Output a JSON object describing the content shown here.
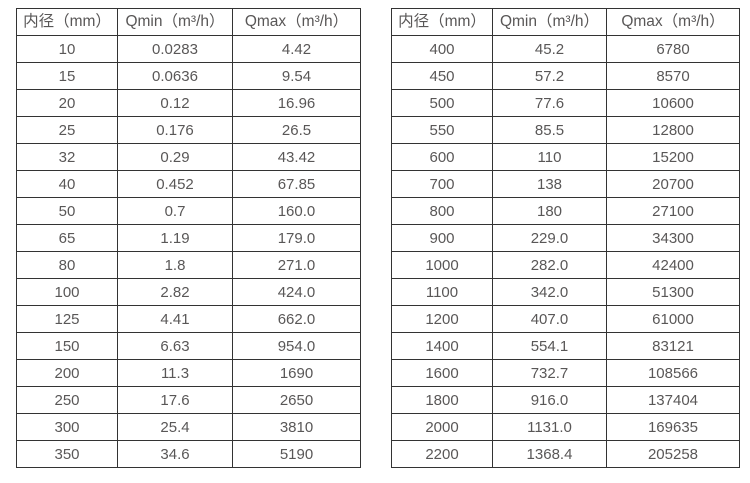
{
  "colors": {
    "background": "#ffffff",
    "border": "#333333",
    "text": "#595757"
  },
  "tables": [
    {
      "name": "diameter-flow-table-small",
      "headers": [
        "内径（mm）",
        "Qmin（m³/h）",
        "Qmax（m³/h）"
      ],
      "rows": [
        [
          "10",
          "0.0283",
          "4.42"
        ],
        [
          "15",
          "0.0636",
          "9.54"
        ],
        [
          "20",
          "0.12",
          "16.96"
        ],
        [
          "25",
          "0.176",
          "26.5"
        ],
        [
          "32",
          "0.29",
          "43.42"
        ],
        [
          "40",
          "0.452",
          "67.85"
        ],
        [
          "50",
          "0.7",
          "160.0"
        ],
        [
          "65",
          "1.19",
          "179.0"
        ],
        [
          "80",
          "1.8",
          "271.0"
        ],
        [
          "100",
          "2.82",
          "424.0"
        ],
        [
          "125",
          "4.41",
          "662.0"
        ],
        [
          "150",
          "6.63",
          "954.0"
        ],
        [
          "200",
          "11.3",
          "1690"
        ],
        [
          "250",
          "17.6",
          "2650"
        ],
        [
          "300",
          "25.4",
          "3810"
        ],
        [
          "350",
          "34.6",
          "5190"
        ]
      ]
    },
    {
      "name": "diameter-flow-table-large",
      "headers": [
        "内径（mm）",
        "Qmin（m³/h）",
        "Qmax（m³/h）"
      ],
      "rows": [
        [
          "400",
          "45.2",
          "6780"
        ],
        [
          "450",
          "57.2",
          "8570"
        ],
        [
          "500",
          "77.6",
          "10600"
        ],
        [
          "550",
          "85.5",
          "12800"
        ],
        [
          "600",
          "110",
          "15200"
        ],
        [
          "700",
          "138",
          "20700"
        ],
        [
          "800",
          "180",
          "27100"
        ],
        [
          "900",
          "229.0",
          "34300"
        ],
        [
          "1000",
          "282.0",
          "42400"
        ],
        [
          "1100",
          "342.0",
          "51300"
        ],
        [
          "1200",
          "407.0",
          "61000"
        ],
        [
          "1400",
          "554.1",
          "83121"
        ],
        [
          "1600",
          "732.7",
          "108566"
        ],
        [
          "1800",
          "916.0",
          "137404"
        ],
        [
          "2000",
          "1131.0",
          "169635"
        ],
        [
          "2200",
          "1368.4",
          "205258"
        ]
      ]
    }
  ],
  "chart_data": {
    "type": "table",
    "title": "",
    "tables": [
      {
        "columns": [
          "内径（mm）",
          "Qmin（m³/h）",
          "Qmax（m³/h）"
        ],
        "diameters_mm": [
          10,
          15,
          20,
          25,
          32,
          40,
          50,
          65,
          80,
          100,
          125,
          150,
          200,
          250,
          300,
          350
        ],
        "qmin_m3h": [
          0.0283,
          0.0636,
          0.12,
          0.176,
          0.29,
          0.452,
          0.7,
          1.19,
          1.8,
          2.82,
          4.41,
          6.63,
          11.3,
          17.6,
          25.4,
          34.6
        ],
        "qmax_m3h": [
          4.42,
          9.54,
          16.96,
          26.5,
          43.42,
          67.85,
          160.0,
          179.0,
          271.0,
          424.0,
          662.0,
          954.0,
          1690,
          2650,
          3810,
          5190
        ]
      },
      {
        "columns": [
          "内径（mm）",
          "Qmin（m³/h）",
          "Qmax（m³/h）"
        ],
        "diameters_mm": [
          400,
          450,
          500,
          550,
          600,
          700,
          800,
          900,
          1000,
          1100,
          1200,
          1400,
          1600,
          1800,
          2000,
          2200
        ],
        "qmin_m3h": [
          45.2,
          57.2,
          77.6,
          85.5,
          110,
          138,
          180,
          229.0,
          282.0,
          342.0,
          407.0,
          554.1,
          732.7,
          916.0,
          1131.0,
          1368.4
        ],
        "qmax_m3h": [
          6780,
          8570,
          10600,
          12800,
          15200,
          20700,
          27100,
          34300,
          42400,
          51300,
          61000,
          83121,
          108566,
          137404,
          169635,
          205258
        ]
      }
    ]
  }
}
